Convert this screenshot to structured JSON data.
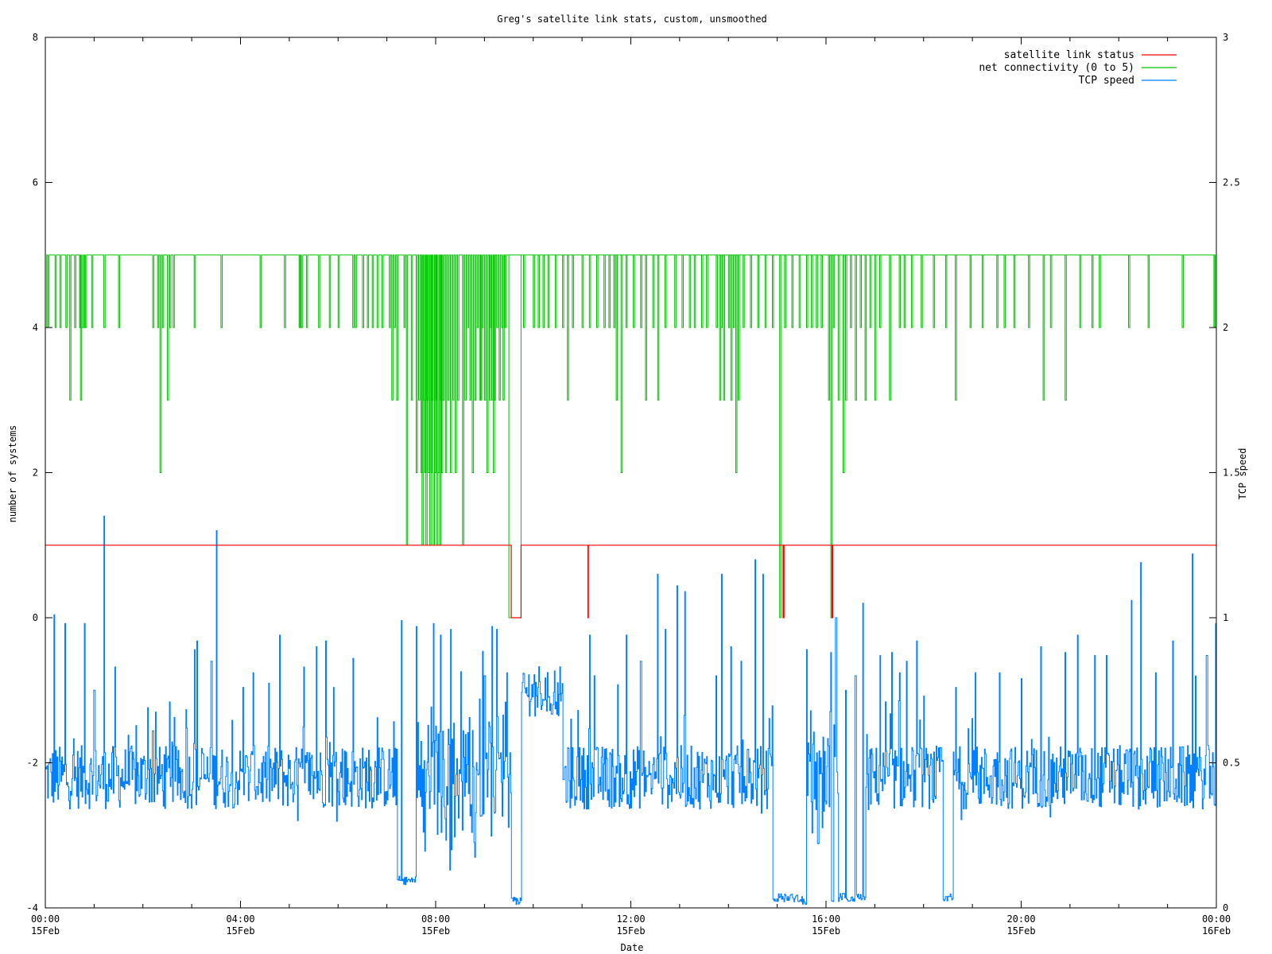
{
  "chart_data": {
    "type": "line",
    "title": "Greg's satellite link stats, custom, unsmoothed",
    "xlabel": "Date",
    "ylabel": "number of systems",
    "y2label": "TCP speed",
    "xlim_hours": [
      0,
      24
    ],
    "ylim": [
      -4,
      8
    ],
    "y2lim": [
      0,
      3
    ],
    "grid": false,
    "legend_position": "top-right",
    "x_ticks": [
      {
        "hour": 0,
        "time": "00:00",
        "date": "15Feb"
      },
      {
        "hour": 4,
        "time": "04:00",
        "date": "15Feb"
      },
      {
        "hour": 8,
        "time": "08:00",
        "date": "15Feb"
      },
      {
        "hour": 12,
        "time": "12:00",
        "date": "15Feb"
      },
      {
        "hour": 16,
        "time": "16:00",
        "date": "15Feb"
      },
      {
        "hour": 20,
        "time": "20:00",
        "date": "15Feb"
      },
      {
        "hour": 24,
        "time": "00:00",
        "date": "16Feb"
      }
    ],
    "y_ticks": [
      -4,
      -2,
      0,
      2,
      4,
      6,
      8
    ],
    "y2_ticks": [
      {
        "value": 0,
        "label": "0"
      },
      {
        "value": 0.5,
        "label": "0.5"
      },
      {
        "value": 1,
        "label": "1"
      },
      {
        "value": 1.5,
        "label": "1.5"
      },
      {
        "value": 2,
        "label": "2"
      },
      {
        "value": 2.5,
        "label": "2.5"
      },
      {
        "value": 3,
        "label": "3"
      }
    ],
    "series": [
      {
        "name": "satellite link status",
        "axis": "y1",
        "color": "#ff0000",
        "baseline": 1,
        "drops": [
          {
            "from": 9.55,
            "to": 9.75,
            "value": 0
          },
          {
            "from": 11.12,
            "to": 11.13,
            "value": 0
          },
          {
            "from": 15.12,
            "to": 15.14,
            "value": 0
          },
          {
            "from": 16.12,
            "to": 16.14,
            "value": 0
          }
        ]
      },
      {
        "name": "net connectivity (0 to 5)",
        "axis": "y1",
        "color": "#00c000",
        "baseline": 5,
        "dips": [
          [
            0.05,
            4
          ],
          [
            0.2,
            4
          ],
          [
            0.3,
            4
          ],
          [
            0.42,
            4
          ],
          [
            0.5,
            3
          ],
          [
            0.6,
            4
          ],
          [
            0.7,
            4
          ],
          [
            0.72,
            3
          ],
          [
            0.75,
            4
          ],
          [
            0.78,
            4
          ],
          [
            0.82,
            4
          ],
          [
            0.95,
            4
          ],
          [
            1.2,
            4
          ],
          [
            1.5,
            4
          ],
          [
            2.2,
            4
          ],
          [
            2.3,
            4
          ],
          [
            2.35,
            2
          ],
          [
            2.4,
            4
          ],
          [
            2.5,
            3
          ],
          [
            2.55,
            4
          ],
          [
            2.62,
            4
          ],
          [
            3.05,
            4
          ],
          [
            3.6,
            4
          ],
          [
            4.4,
            4
          ],
          [
            4.9,
            4
          ],
          [
            5.2,
            4
          ],
          [
            5.22,
            4
          ],
          [
            5.25,
            4
          ],
          [
            5.35,
            4
          ],
          [
            5.6,
            4
          ],
          [
            5.82,
            4
          ],
          [
            6.0,
            4
          ],
          [
            6.3,
            4
          ],
          [
            6.35,
            4
          ],
          [
            6.5,
            4
          ],
          [
            6.6,
            4
          ],
          [
            6.7,
            4
          ],
          [
            6.8,
            4
          ],
          [
            6.9,
            4
          ],
          [
            7.05,
            4
          ],
          [
            7.1,
            3
          ],
          [
            7.15,
            4
          ],
          [
            7.2,
            3
          ],
          [
            7.35,
            4
          ],
          [
            7.4,
            1
          ],
          [
            7.5,
            3
          ],
          [
            7.6,
            2
          ],
          [
            7.65,
            3
          ],
          [
            7.7,
            2
          ],
          [
            7.72,
            1
          ],
          [
            7.75,
            3
          ],
          [
            7.78,
            2
          ],
          [
            7.8,
            1
          ],
          [
            7.82,
            3
          ],
          [
            7.85,
            2
          ],
          [
            7.88,
            1
          ],
          [
            7.9,
            2
          ],
          [
            7.92,
            3
          ],
          [
            7.95,
            1
          ],
          [
            7.98,
            2
          ],
          [
            8.0,
            3
          ],
          [
            8.02,
            1
          ],
          [
            8.05,
            2
          ],
          [
            8.08,
            1
          ],
          [
            8.1,
            3
          ],
          [
            8.12,
            2
          ],
          [
            8.15,
            3
          ],
          [
            8.2,
            2
          ],
          [
            8.25,
            3
          ],
          [
            8.3,
            2
          ],
          [
            8.35,
            3
          ],
          [
            8.4,
            2
          ],
          [
            8.45,
            3
          ],
          [
            8.55,
            1
          ],
          [
            8.6,
            3
          ],
          [
            8.65,
            4
          ],
          [
            8.7,
            3
          ],
          [
            8.75,
            2
          ],
          [
            8.8,
            3
          ],
          [
            8.85,
            4
          ],
          [
            8.9,
            3
          ],
          [
            8.92,
            3
          ],
          [
            8.95,
            4
          ],
          [
            9.0,
            3
          ],
          [
            9.05,
            2
          ],
          [
            9.1,
            3
          ],
          [
            9.12,
            4
          ],
          [
            9.15,
            3
          ],
          [
            9.18,
            2
          ],
          [
            9.2,
            3
          ],
          [
            9.25,
            4
          ],
          [
            9.3,
            3
          ],
          [
            9.35,
            4
          ],
          [
            9.38,
            3
          ],
          [
            9.42,
            4
          ],
          [
            9.8,
            4
          ],
          [
            10.0,
            4
          ],
          [
            10.1,
            4
          ],
          [
            10.2,
            4
          ],
          [
            10.3,
            4
          ],
          [
            10.45,
            4
          ],
          [
            10.6,
            4
          ],
          [
            10.7,
            3
          ],
          [
            10.8,
            4
          ],
          [
            11.0,
            4
          ],
          [
            11.15,
            4
          ],
          [
            11.3,
            4
          ],
          [
            11.45,
            4
          ],
          [
            11.55,
            4
          ],
          [
            11.65,
            4
          ],
          [
            11.7,
            3
          ],
          [
            11.8,
            2
          ],
          [
            11.9,
            4
          ],
          [
            12.05,
            4
          ],
          [
            12.2,
            4
          ],
          [
            12.3,
            3
          ],
          [
            12.45,
            4
          ],
          [
            12.55,
            3
          ],
          [
            12.7,
            4
          ],
          [
            12.9,
            4
          ],
          [
            13.05,
            4
          ],
          [
            13.2,
            4
          ],
          [
            13.3,
            4
          ],
          [
            13.45,
            4
          ],
          [
            13.55,
            4
          ],
          [
            13.75,
            4
          ],
          [
            13.82,
            3
          ],
          [
            13.85,
            4
          ],
          [
            13.9,
            3
          ],
          [
            14.0,
            4
          ],
          [
            14.05,
            3
          ],
          [
            14.1,
            4
          ],
          [
            14.15,
            2
          ],
          [
            14.2,
            3
          ],
          [
            14.3,
            4
          ],
          [
            14.45,
            4
          ],
          [
            14.6,
            4
          ],
          [
            14.75,
            4
          ],
          [
            14.9,
            4
          ],
          [
            15.05,
            0
          ],
          [
            15.15,
            4
          ],
          [
            15.3,
            4
          ],
          [
            15.45,
            4
          ],
          [
            15.6,
            4
          ],
          [
            15.7,
            4
          ],
          [
            15.8,
            4
          ],
          [
            15.9,
            4
          ],
          [
            16.05,
            3
          ],
          [
            16.1,
            0
          ],
          [
            16.15,
            4
          ],
          [
            16.25,
            3
          ],
          [
            16.35,
            2
          ],
          [
            16.4,
            3
          ],
          [
            16.5,
            4
          ],
          [
            16.6,
            3
          ],
          [
            16.7,
            4
          ],
          [
            16.8,
            3
          ],
          [
            16.9,
            4
          ],
          [
            17.0,
            3
          ],
          [
            17.1,
            4
          ],
          [
            17.3,
            3
          ],
          [
            17.5,
            4
          ],
          [
            17.6,
            4
          ],
          [
            17.75,
            4
          ],
          [
            17.95,
            4
          ],
          [
            18.2,
            4
          ],
          [
            18.45,
            4
          ],
          [
            18.65,
            3
          ],
          [
            18.95,
            4
          ],
          [
            19.2,
            4
          ],
          [
            19.5,
            4
          ],
          [
            19.65,
            4
          ],
          [
            19.85,
            4
          ],
          [
            20.15,
            4
          ],
          [
            20.45,
            3
          ],
          [
            20.6,
            4
          ],
          [
            20.9,
            3
          ],
          [
            21.2,
            4
          ],
          [
            21.45,
            4
          ],
          [
            21.6,
            4
          ],
          [
            22.2,
            4
          ],
          [
            22.6,
            4
          ],
          [
            23.3,
            4
          ],
          [
            23.95,
            4
          ]
        ]
      },
      {
        "name": "TCP speed",
        "axis": "y2",
        "color": "#0080ff",
        "typical_level": 0.45,
        "spikes": [
          [
            0.18,
            1.01
          ],
          [
            0.4,
            0.98
          ],
          [
            0.8,
            0.98
          ],
          [
            1.0,
            0.75
          ],
          [
            1.2,
            1.35
          ],
          [
            1.42,
            0.83
          ],
          [
            2.1,
            0.69
          ],
          [
            2.2,
            0.61
          ],
          [
            2.55,
            0.71
          ],
          [
            2.9,
            0.62
          ],
          [
            3.05,
            0.89
          ],
          [
            3.1,
            0.92
          ],
          [
            3.4,
            0.85
          ],
          [
            3.5,
            1.3
          ],
          [
            4.05,
            0.76
          ],
          [
            4.25,
            0.81
          ],
          [
            4.8,
            0.94
          ],
          [
            5.3,
            0.83
          ],
          [
            5.55,
            0.9
          ],
          [
            5.75,
            0.92
          ],
          [
            5.9,
            0.76
          ],
          [
            6.3,
            0.86
          ],
          [
            7.3,
            0.99
          ],
          [
            7.6,
            0.97
          ],
          [
            7.95,
            0.98
          ],
          [
            8.1,
            0.94
          ],
          [
            8.3,
            0.96
          ],
          [
            8.9,
            0.72
          ],
          [
            9.0,
            0.8
          ],
          [
            9.15,
            0.97
          ],
          [
            9.25,
            0.96
          ],
          [
            9.45,
            0.81
          ],
          [
            10.4,
            0.7
          ],
          [
            11.15,
            0.94
          ],
          [
            11.25,
            0.8
          ],
          [
            11.9,
            0.94
          ],
          [
            12.2,
            0.85
          ],
          [
            12.55,
            1.15
          ],
          [
            12.7,
            0.96
          ],
          [
            12.95,
            1.11
          ],
          [
            13.1,
            1.09
          ],
          [
            13.75,
            0.8
          ],
          [
            13.85,
            1.15
          ],
          [
            14.05,
            0.9
          ],
          [
            14.25,
            0.85
          ],
          [
            14.55,
            1.2
          ],
          [
            14.7,
            1.15
          ],
          [
            15.6,
            0.89
          ],
          [
            16.1,
            0.88
          ],
          [
            16.2,
            1.0
          ],
          [
            16.4,
            0.75
          ],
          [
            16.6,
            0.8
          ],
          [
            16.75,
            1.05
          ],
          [
            17.1,
            0.87
          ],
          [
            17.35,
            0.88
          ],
          [
            17.5,
            0.81
          ],
          [
            17.65,
            0.85
          ],
          [
            17.85,
            0.92
          ],
          [
            18.0,
            0.73
          ],
          [
            18.65,
            0.76
          ],
          [
            19.05,
            0.81
          ],
          [
            19.55,
            0.81
          ],
          [
            20.0,
            0.79
          ],
          [
            20.4,
            0.9
          ],
          [
            20.9,
            0.88
          ],
          [
            21.15,
            0.94
          ],
          [
            21.5,
            0.87
          ],
          [
            21.75,
            0.87
          ],
          [
            22.25,
            1.06
          ],
          [
            22.45,
            1.19
          ],
          [
            22.75,
            0.81
          ],
          [
            23.1,
            0.92
          ],
          [
            23.5,
            1.22
          ],
          [
            23.8,
            0.87
          ],
          [
            23.98,
            0.98
          ]
        ],
        "low_segments": [
          [
            7.2,
            7.6,
            0.08
          ],
          [
            9.55,
            9.75,
            0.01
          ],
          [
            14.9,
            15.5,
            0.02
          ],
          [
            15.5,
            15.6,
            0.01
          ],
          [
            16.1,
            16.15,
            0.02
          ],
          [
            16.25,
            16.55,
            0.02
          ],
          [
            16.55,
            16.8,
            0.02
          ],
          [
            18.4,
            18.6,
            0.02
          ]
        ]
      }
    ]
  }
}
